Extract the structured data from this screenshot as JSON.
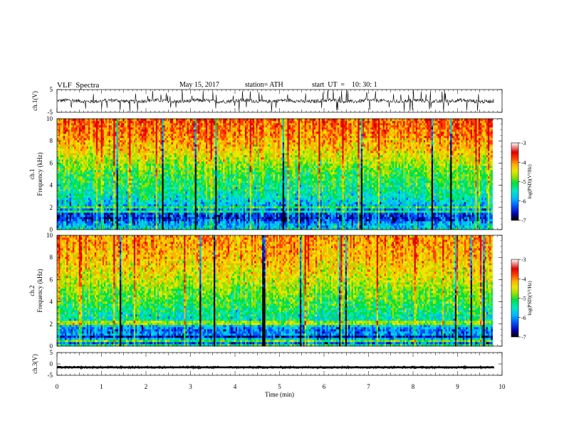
{
  "header": {
    "title": "VLF  Spectra",
    "date": "May 15, 2017",
    "station": "station= ATH",
    "start": "start  UT  =    10: 30: 1"
  },
  "colors": {
    "spectrogram_ramp": [
      "#000000",
      "#0000a8",
      "#0050ff",
      "#00b8ff",
      "#00e8c0",
      "#00e040",
      "#9ae000",
      "#e8e800",
      "#ffb000",
      "#ff4000",
      "#e00000",
      "#ffffff"
    ],
    "trace": "#000000"
  },
  "chart_data": [
    {
      "type": "line",
      "name": "channel-1-waveform",
      "ylabel": "ch.1(V)",
      "ylim": [
        -5,
        5
      ],
      "yticks": [
        "5",
        "-5"
      ],
      "xlim": [
        0,
        10
      ],
      "description_of_values": "noisy voltage trace, mostly within about -1.5 to 1.5 V with frequent spikes",
      "trace_band": [
        -1.5,
        1.5
      ]
    },
    {
      "type": "heatmap",
      "name": "channel-1-spectrogram",
      "channel_label": "ch.1",
      "ylabel": "Frequency  (kHz)",
      "ylim": [
        0,
        10
      ],
      "yticks": [
        "0",
        "2",
        "4",
        "6",
        "8",
        "10"
      ],
      "xlim": [
        0,
        9.8
      ],
      "colorbar": {
        "label": "log(PSD)(V²/Hz)",
        "range": [
          -7,
          -3
        ],
        "ticks": [
          "-3",
          "-4",
          "-5",
          "-6",
          "-7"
        ]
      },
      "profile_log_psd": [
        [
          0,
          -6.6
        ],
        [
          0.3,
          -5.6
        ],
        [
          0.7,
          -5.9
        ],
        [
          1.0,
          -6.3
        ],
        [
          1.5,
          -6.1
        ],
        [
          2.0,
          -5.8
        ],
        [
          3.0,
          -5.3
        ],
        [
          4.0,
          -5.1
        ],
        [
          5.0,
          -4.9
        ],
        [
          6.0,
          -4.6
        ],
        [
          7.0,
          -4.2
        ],
        [
          8.0,
          -3.9
        ],
        [
          9.0,
          -3.7
        ],
        [
          10.0,
          -3.6
        ]
      ]
    },
    {
      "type": "heatmap",
      "name": "channel-2-spectrogram",
      "channel_label": "ch.2",
      "ylabel": "Frequency  (kHz)",
      "ylim": [
        0,
        10
      ],
      "yticks": [
        "0",
        "2",
        "4",
        "6",
        "8",
        "10"
      ],
      "xlim": [
        0,
        9.8
      ],
      "colorbar": {
        "label": "log(PSD)(V²/Hz)",
        "range": [
          -7,
          -3
        ],
        "ticks": [
          "-3",
          "-4",
          "-5",
          "-6",
          "-7"
        ]
      },
      "profile_log_psd": [
        [
          0,
          -5.0
        ],
        [
          0.5,
          -5.6
        ],
        [
          1.0,
          -5.8
        ],
        [
          1.5,
          -6.0
        ],
        [
          2.0,
          -5.4
        ],
        [
          3.0,
          -5.2
        ],
        [
          4.0,
          -4.9
        ],
        [
          5.0,
          -4.7
        ],
        [
          6.0,
          -4.4
        ],
        [
          7.0,
          -4.2
        ],
        [
          8.0,
          -4.0
        ],
        [
          9.0,
          -3.9
        ],
        [
          10.0,
          -3.8
        ]
      ]
    },
    {
      "type": "line",
      "name": "channel-3-waveform",
      "ylabel": "ch.3(V)",
      "ylim": [
        -5,
        5
      ],
      "yticks": [
        "5",
        "0",
        "-5"
      ],
      "xlim": [
        0,
        10
      ],
      "description_of_values": "flat dense trace near -1.5 V",
      "trace_level": -1.5
    }
  ],
  "x_axis": {
    "label": "Time  (min)",
    "ticks": [
      "0",
      "1",
      "2",
      "3",
      "4",
      "5",
      "6",
      "7",
      "8",
      "9",
      "10"
    ],
    "range": [
      0,
      10
    ]
  }
}
